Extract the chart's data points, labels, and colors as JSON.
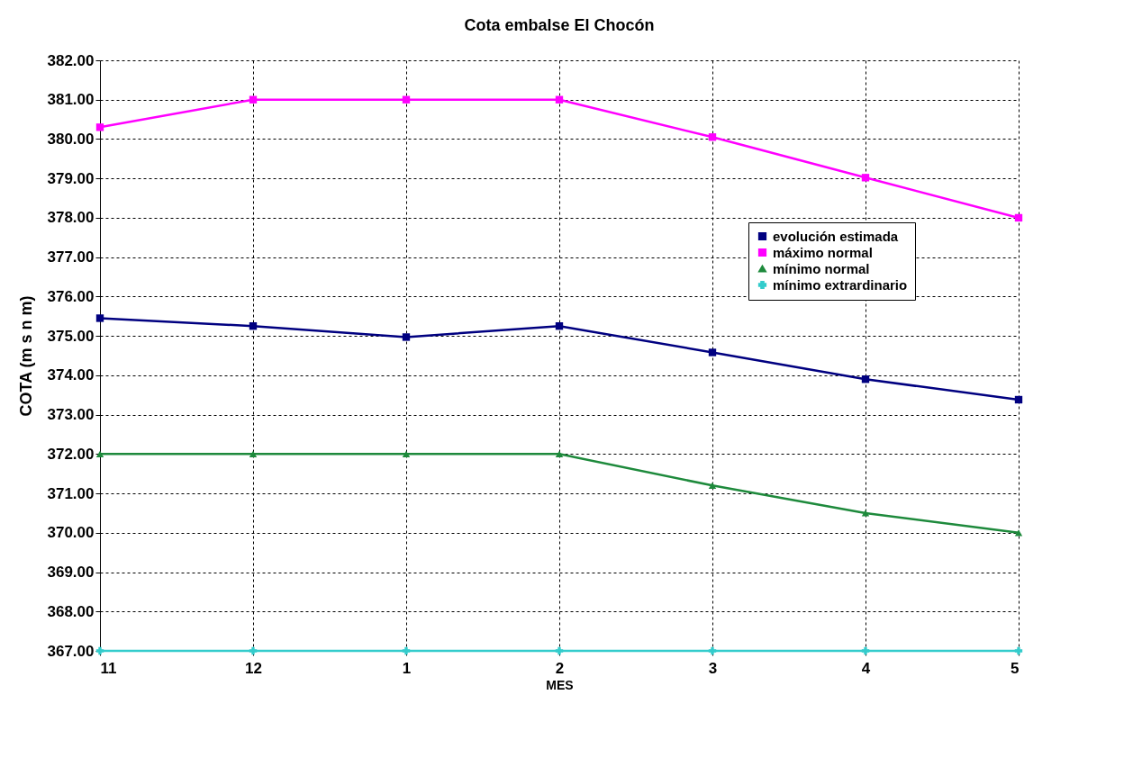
{
  "chart_data": {
    "type": "line",
    "title": "Cota embalse El Chocón",
    "xlabel": "MES",
    "ylabel": "COTA (m s n m)",
    "categories": [
      "11",
      "12",
      "1",
      "2",
      "3",
      "4",
      "5"
    ],
    "series": [
      {
        "name": "evolución estimada",
        "color": "#000080",
        "marker": "square",
        "values": [
          375.45,
          375.25,
          374.97,
          375.25,
          374.58,
          373.9,
          373.38
        ]
      },
      {
        "name": "máximo normal",
        "color": "#ff00ff",
        "marker": "square",
        "values": [
          380.3,
          381.0,
          381.0,
          381.0,
          380.05,
          379.02,
          378.0
        ]
      },
      {
        "name": "mínimo normal",
        "color": "#1e8a3c",
        "marker": "triangle",
        "values": [
          372.0,
          372.0,
          372.0,
          372.0,
          371.2,
          370.5,
          370.0
        ]
      },
      {
        "name": "mínimo extrardinario",
        "color": "#33cccc",
        "marker": "cross",
        "values": [
          367.0,
          367.0,
          367.0,
          367.0,
          367.0,
          367.0,
          367.0
        ]
      }
    ],
    "ylim": [
      367,
      382
    ],
    "yticks": [
      {
        "value": 367,
        "label": "367.00"
      },
      {
        "value": 368,
        "label": "368.00"
      },
      {
        "value": 369,
        "label": "369.00"
      },
      {
        "value": 370,
        "label": "370.00"
      },
      {
        "value": 371,
        "label": "371.00"
      },
      {
        "value": 372,
        "label": "372.00"
      },
      {
        "value": 373,
        "label": "373.00"
      },
      {
        "value": 374,
        "label": "374.00"
      },
      {
        "value": 375,
        "label": "375.00"
      },
      {
        "value": 376,
        "label": "376.00"
      },
      {
        "value": 377,
        "label": "377.00"
      },
      {
        "value": 378,
        "label": "378.00"
      },
      {
        "value": 379,
        "label": "379.00"
      },
      {
        "value": 380,
        "label": "380.00"
      },
      {
        "value": 381,
        "label": "381.00"
      },
      {
        "value": 382,
        "label": "382.00"
      }
    ],
    "grid": true,
    "legend": "right",
    "line_style": "solid"
  }
}
